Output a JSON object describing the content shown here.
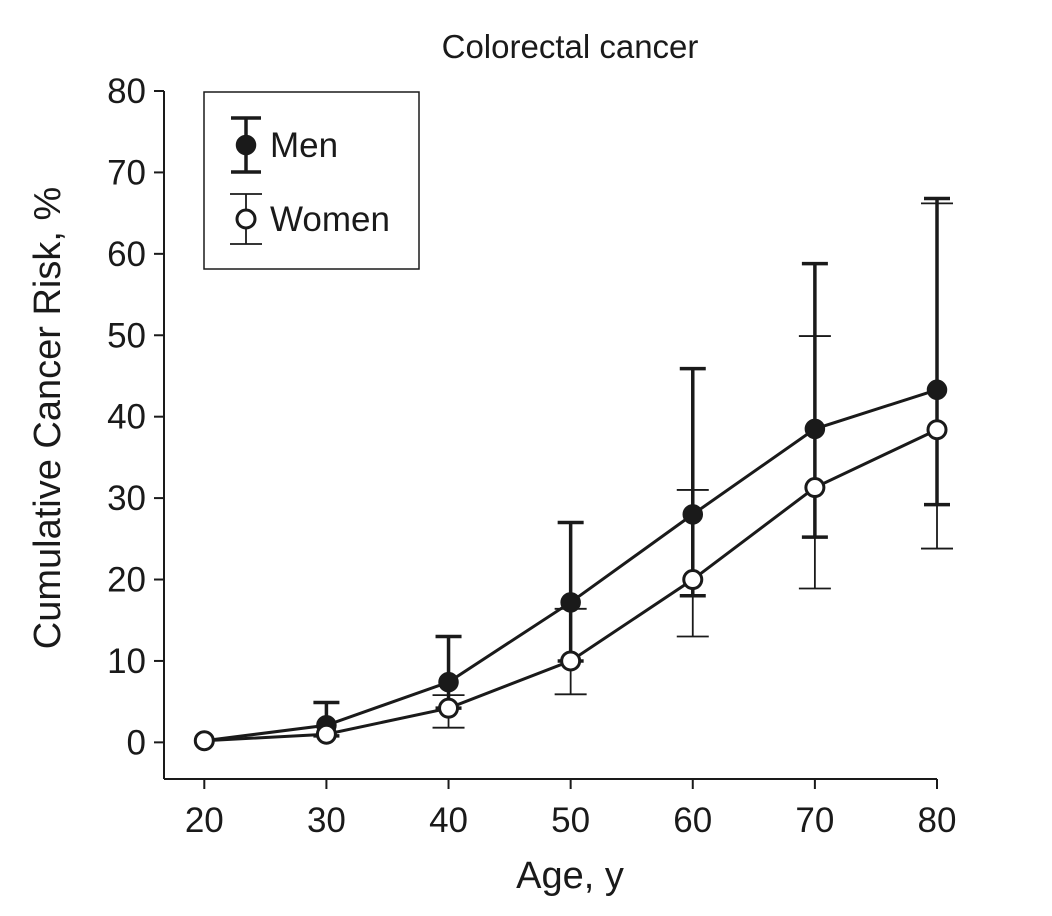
{
  "chart_data": {
    "type": "line",
    "title": "Colorectal cancer",
    "xlabel": "Age, y",
    "ylabel": "Cumulative Cancer Risk, %",
    "x": [
      20,
      30,
      40,
      50,
      60,
      70,
      80
    ],
    "xlim": [
      16.7,
      80
    ],
    "ylim": [
      -4.5,
      80
    ],
    "xticks": [
      20,
      30,
      40,
      50,
      60,
      70,
      80
    ],
    "yticks": [
      0,
      10,
      20,
      30,
      40,
      50,
      60,
      70,
      80
    ],
    "grid": false,
    "legend_position": "top-left",
    "series": [
      {
        "name": "Men",
        "marker": "filled-circle",
        "values": [
          0.2,
          2.1,
          7.4,
          17.2,
          28.0,
          38.5,
          43.3
        ],
        "error_low": [
          null,
          0.8,
          4.2,
          10.0,
          18.0,
          25.2,
          29.2
        ],
        "error_high": [
          null,
          4.9,
          13.0,
          27.0,
          45.9,
          58.8,
          66.8
        ]
      },
      {
        "name": "Women",
        "marker": "open-circle",
        "values": [
          0.2,
          1.0,
          4.2,
          10.0,
          20.0,
          31.3,
          38.4
        ],
        "error_low": [
          null,
          null,
          1.8,
          5.9,
          13.0,
          18.9,
          23.8
        ],
        "error_high": [
          null,
          null,
          5.8,
          16.4,
          31.0,
          49.9,
          66.2
        ]
      }
    ]
  }
}
